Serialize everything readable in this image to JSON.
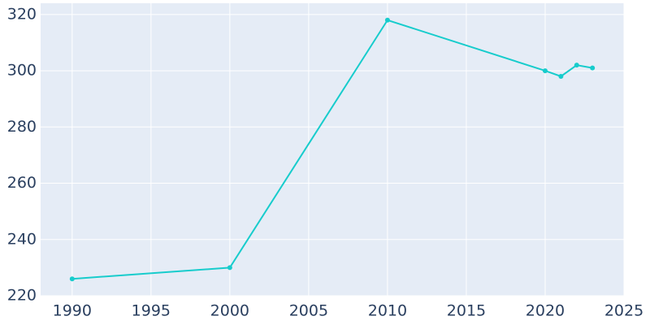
{
  "chart_data": {
    "type": "line",
    "x": [
      1990,
      2000,
      2010,
      2020,
      2021,
      2022,
      2023
    ],
    "series": [
      {
        "color": "#17cccc",
        "values": [
          226,
          230,
          318,
          300,
          298,
          302,
          301
        ]
      }
    ],
    "xlim": [
      1988,
      2025
    ],
    "xticks": [
      1990,
      1995,
      2000,
      2005,
      2010,
      2015,
      2020,
      2025
    ],
    "ylim": [
      220,
      324
    ],
    "yticks": [
      220,
      240,
      260,
      280,
      300,
      320
    ],
    "grid": true,
    "background": "#e5ecf6"
  }
}
